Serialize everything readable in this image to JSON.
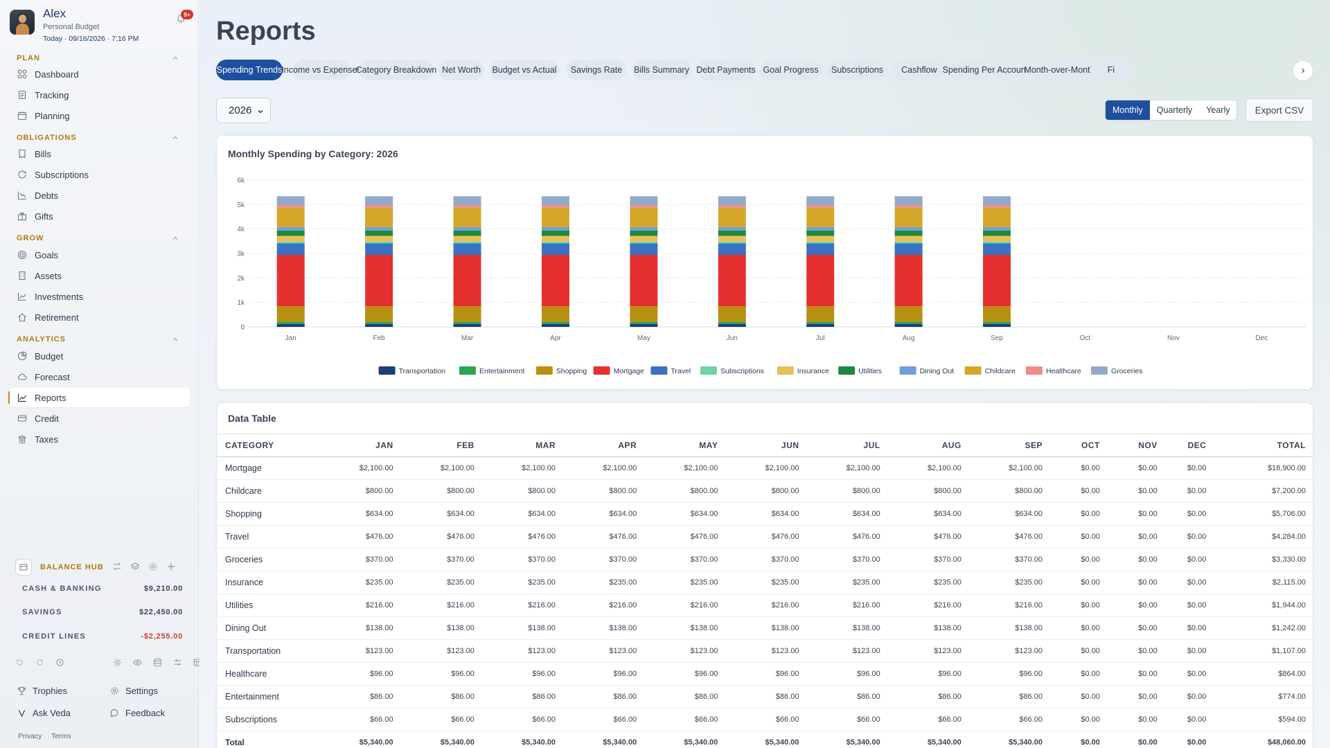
{
  "profile": {
    "name": "Alex",
    "subtitle": "Personal Budget",
    "date": "Today · 09/16/2026 · 7:16 PM",
    "notifications": "9+"
  },
  "sections": {
    "plan": "PLAN",
    "obligations": "OBLIGATIONS",
    "grow": "GROW",
    "analytics": "ANALYTICS"
  },
  "nav": {
    "dashboard": "Dashboard",
    "tracking": "Tracking",
    "planning": "Planning",
    "bills": "Bills",
    "subscriptions": "Subscriptions",
    "debts": "Debts",
    "gifts": "Gifts",
    "goals": "Goals",
    "assets": "Assets",
    "investments": "Investments",
    "retirement": "Retirement",
    "budget": "Budget",
    "forecast": "Forecast",
    "reports": "Reports",
    "credit": "Credit",
    "taxes": "Taxes"
  },
  "balance_hub": {
    "title": "BALANCE HUB",
    "rows": [
      {
        "label": "CASH & BANKING",
        "value": "$9,210.00"
      },
      {
        "label": "SAVINGS",
        "value": "$22,450.00"
      },
      {
        "label": "CREDIT LINES",
        "value": "-$2,255.00"
      }
    ]
  },
  "footer": {
    "trophies": "Trophies",
    "settings": "Settings",
    "ask": "Ask Veda",
    "feedback": "Feedback",
    "privacy": "Privacy",
    "terms": "Terms"
  },
  "page": {
    "title": "Reports"
  },
  "tabs": [
    "Spending Trends",
    "Income vs Expenses",
    "Category Breakdown",
    "Net Worth",
    "Budget vs Actual",
    "Savings Rate",
    "Bills Summary",
    "Debt Payments",
    "Goal Progress",
    "Subscriptions",
    "Cashflow",
    "Spending Per Account",
    "Month-over-Month",
    "Fi"
  ],
  "controls": {
    "year": "2026",
    "periods": [
      "Monthly",
      "Quarterly",
      "Yearly"
    ],
    "export": "Export CSV"
  },
  "chart_data": {
    "type": "bar",
    "stacked": true,
    "title": "Monthly Spending by Category: 2026",
    "categories": [
      "Jan",
      "Feb",
      "Mar",
      "Apr",
      "May",
      "Jun",
      "Jul",
      "Aug",
      "Sep",
      "Oct",
      "Nov",
      "Dec"
    ],
    "ylim": [
      0,
      6000
    ],
    "yticks": [
      "0",
      "1k",
      "2k",
      "3k",
      "4k",
      "5k",
      "6k"
    ],
    "grid": true,
    "legend": "bottom",
    "series": [
      {
        "name": "Transportation",
        "color": "#1a3f7a",
        "values": [
          123,
          123,
          123,
          123,
          123,
          123,
          123,
          123,
          123,
          0,
          0,
          0
        ]
      },
      {
        "name": "Entertainment",
        "color": "#2ea44f",
        "values": [
          86,
          86,
          86,
          86,
          86,
          86,
          86,
          86,
          86,
          0,
          0,
          0
        ]
      },
      {
        "name": "Shopping",
        "color": "#b8900f",
        "values": [
          634,
          634,
          634,
          634,
          634,
          634,
          634,
          634,
          634,
          0,
          0,
          0
        ]
      },
      {
        "name": "Mortgage",
        "color": "#e5302f",
        "values": [
          2100,
          2100,
          2100,
          2100,
          2100,
          2100,
          2100,
          2100,
          2100,
          0,
          0,
          0
        ]
      },
      {
        "name": "Travel",
        "color": "#3a73c4",
        "values": [
          476,
          476,
          476,
          476,
          476,
          476,
          476,
          476,
          476,
          0,
          0,
          0
        ]
      },
      {
        "name": "Subscriptions",
        "color": "#6fd4a0",
        "values": [
          66,
          66,
          66,
          66,
          66,
          66,
          66,
          66,
          66,
          0,
          0,
          0
        ]
      },
      {
        "name": "Insurance",
        "color": "#e8c055",
        "values": [
          235,
          235,
          235,
          235,
          235,
          235,
          235,
          235,
          235,
          0,
          0,
          0
        ]
      },
      {
        "name": "Utilities",
        "color": "#1d8a3c",
        "values": [
          216,
          216,
          216,
          216,
          216,
          216,
          216,
          216,
          216,
          0,
          0,
          0
        ]
      },
      {
        "name": "Dining Out",
        "color": "#6f9fd8",
        "values": [
          138,
          138,
          138,
          138,
          138,
          138,
          138,
          138,
          138,
          0,
          0,
          0
        ]
      },
      {
        "name": "Childcare",
        "color": "#d4a62a",
        "values": [
          800,
          800,
          800,
          800,
          800,
          800,
          800,
          800,
          800,
          0,
          0,
          0
        ]
      },
      {
        "name": "Healthcare",
        "color": "#f28a8a",
        "values": [
          96,
          96,
          96,
          96,
          96,
          96,
          96,
          96,
          96,
          0,
          0,
          0
        ]
      },
      {
        "name": "Groceries",
        "color": "#93a9c9",
        "values": [
          370,
          370,
          370,
          370,
          370,
          370,
          370,
          370,
          370,
          0,
          0,
          0
        ]
      }
    ]
  },
  "table": {
    "title": "Data Table",
    "headers": [
      "CATEGORY",
      "JAN",
      "FEB",
      "MAR",
      "APR",
      "MAY",
      "JUN",
      "JUL",
      "AUG",
      "SEP",
      "OCT",
      "NOV",
      "DEC",
      "TOTAL"
    ],
    "rows": [
      [
        "Mortgage",
        "$2,100.00",
        "$2,100.00",
        "$2,100.00",
        "$2,100.00",
        "$2,100.00",
        "$2,100.00",
        "$2,100.00",
        "$2,100.00",
        "$2,100.00",
        "$0.00",
        "$0.00",
        "$0.00",
        "$18,900.00"
      ],
      [
        "Childcare",
        "$800.00",
        "$800.00",
        "$800.00",
        "$800.00",
        "$800.00",
        "$800.00",
        "$800.00",
        "$800.00",
        "$800.00",
        "$0.00",
        "$0.00",
        "$0.00",
        "$7,200.00"
      ],
      [
        "Shopping",
        "$634.00",
        "$634.00",
        "$634.00",
        "$634.00",
        "$634.00",
        "$634.00",
        "$634.00",
        "$634.00",
        "$634.00",
        "$0.00",
        "$0.00",
        "$0.00",
        "$5,706.00"
      ],
      [
        "Travel",
        "$476.00",
        "$476.00",
        "$476.00",
        "$476.00",
        "$476.00",
        "$476.00",
        "$476.00",
        "$476.00",
        "$476.00",
        "$0.00",
        "$0.00",
        "$0.00",
        "$4,284.00"
      ],
      [
        "Groceries",
        "$370.00",
        "$370.00",
        "$370.00",
        "$370.00",
        "$370.00",
        "$370.00",
        "$370.00",
        "$370.00",
        "$370.00",
        "$0.00",
        "$0.00",
        "$0.00",
        "$3,330.00"
      ],
      [
        "Insurance",
        "$235.00",
        "$235.00",
        "$235.00",
        "$235.00",
        "$235.00",
        "$235.00",
        "$235.00",
        "$235.00",
        "$235.00",
        "$0.00",
        "$0.00",
        "$0.00",
        "$2,115.00"
      ],
      [
        "Utilities",
        "$216.00",
        "$216.00",
        "$216.00",
        "$216.00",
        "$216.00",
        "$216.00",
        "$216.00",
        "$216.00",
        "$216.00",
        "$0.00",
        "$0.00",
        "$0.00",
        "$1,944.00"
      ],
      [
        "Dining Out",
        "$138.00",
        "$138.00",
        "$138.00",
        "$138.00",
        "$138.00",
        "$138.00",
        "$138.00",
        "$138.00",
        "$138.00",
        "$0.00",
        "$0.00",
        "$0.00",
        "$1,242.00"
      ],
      [
        "Transportation",
        "$123.00",
        "$123.00",
        "$123.00",
        "$123.00",
        "$123.00",
        "$123.00",
        "$123.00",
        "$123.00",
        "$123.00",
        "$0.00",
        "$0.00",
        "$0.00",
        "$1,107.00"
      ],
      [
        "Healthcare",
        "$96.00",
        "$96.00",
        "$96.00",
        "$96.00",
        "$96.00",
        "$96.00",
        "$96.00",
        "$96.00",
        "$96.00",
        "$0.00",
        "$0.00",
        "$0.00",
        "$864.00"
      ],
      [
        "Entertainment",
        "$86.00",
        "$86.00",
        "$86.00",
        "$86.00",
        "$86.00",
        "$86.00",
        "$86.00",
        "$86.00",
        "$86.00",
        "$0.00",
        "$0.00",
        "$0.00",
        "$774.00"
      ],
      [
        "Subscriptions",
        "$66.00",
        "$66.00",
        "$66.00",
        "$66.00",
        "$66.00",
        "$66.00",
        "$66.00",
        "$66.00",
        "$66.00",
        "$0.00",
        "$0.00",
        "$0.00",
        "$594.00"
      ]
    ],
    "total": [
      "Total",
      "$5,340.00",
      "$5,340.00",
      "$5,340.00",
      "$5,340.00",
      "$5,340.00",
      "$5,340.00",
      "$5,340.00",
      "$5,340.00",
      "$5,340.00",
      "$0.00",
      "$0.00",
      "$0.00",
      "$48,060.00"
    ]
  },
  "colors": {
    "accent": "#1d4f9e",
    "section": "#b07a10",
    "negative": "#d23b30"
  }
}
